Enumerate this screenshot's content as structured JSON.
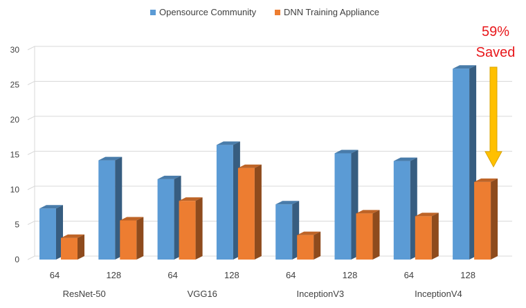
{
  "chart_data": {
    "type": "bar",
    "style": "3d-clustered-column",
    "groups": [
      {
        "label": "ResNet-50",
        "categories": [
          "64",
          "128"
        ]
      },
      {
        "label": "VGG16",
        "categories": [
          "64",
          "128"
        ]
      },
      {
        "label": "InceptionV3",
        "categories": [
          "64",
          "128"
        ]
      },
      {
        "label": "InceptionV4",
        "categories": [
          "64",
          "128"
        ]
      }
    ],
    "categories": [
      "64",
      "128",
      "64",
      "128",
      "64",
      "128",
      "64",
      "128"
    ],
    "series": [
      {
        "name": "Opensource Community",
        "color": "#5b9bd5",
        "values": [
          7.3,
          14.2,
          11.5,
          16.4,
          7.9,
          15.2,
          14.1,
          27.3
        ]
      },
      {
        "name": "DNN Training Appliance",
        "color": "#ed7d31",
        "values": [
          3.1,
          5.6,
          8.4,
          13.1,
          3.5,
          6.6,
          6.2,
          11.1
        ]
      }
    ],
    "ylim": [
      0,
      30
    ],
    "yticks": [
      0,
      5,
      10,
      15,
      20,
      25,
      30
    ],
    "grid": true,
    "legend": "top-center",
    "annotation": {
      "line1": "59%",
      "line2": "Saved",
      "color": "#e8171b",
      "arrow_color": "#ffc000",
      "arrow_target_category_index": 7
    }
  }
}
